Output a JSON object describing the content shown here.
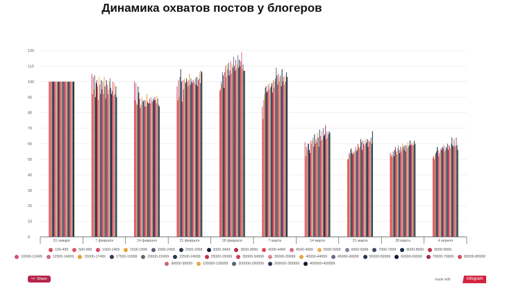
{
  "chart_data": {
    "type": "bar",
    "title": "Динамика охватов постов у блогеров",
    "xlabel": "",
    "ylabel": "",
    "ylim": [
      0,
      120
    ],
    "yticks": [
      0,
      10,
      20,
      30,
      40,
      50,
      60,
      70,
      80,
      90,
      100,
      110,
      120
    ],
    "grid": true,
    "legend_position": "bottom",
    "categories": [
      "31 января",
      "7 февраля",
      "14 февраля",
      "21 февраля",
      "28 февраля",
      "7 марта",
      "14 марта",
      "21 марта",
      "28 марта",
      "4 апреля"
    ],
    "series": [
      {
        "name": "100-499",
        "color": "#d9475c",
        "values": [
          100,
          105,
          100,
          97,
          94,
          84,
          61,
          50,
          54,
          51
        ]
      },
      {
        "name": "500-999",
        "color": "#e0525e",
        "values": [
          100,
          92,
          88,
          88,
          95,
          76,
          52,
          50,
          52,
          52
        ]
      },
      {
        "name": "1000-1499",
        "color": "#d04a64",
        "values": [
          100,
          103,
          99,
          101,
          100,
          88,
          58,
          54,
          53,
          50
        ]
      },
      {
        "name": "1500-1999",
        "color": "#e8a03c",
        "values": [
          100,
          95,
          86,
          90,
          98,
          92,
          56,
          53,
          51,
          53
        ]
      },
      {
        "name": "2000-2499",
        "color": "#5a6275",
        "values": [
          100,
          104,
          85,
          103,
          106,
          96,
          60,
          56,
          55,
          54
        ]
      },
      {
        "name": "2500-2999",
        "color": "#2a3550",
        "values": [
          100,
          90,
          97,
          108,
          104,
          97,
          60,
          57,
          52,
          55
        ]
      },
      {
        "name": "3000-3499",
        "color": "#111e33",
        "values": [
          100,
          99,
          93,
          100,
          96,
          93,
          56,
          54,
          56,
          58
        ]
      },
      {
        "name": "3500-3999",
        "color": "#b7284a",
        "values": [
          100,
          101,
          89,
          87,
          106,
          94,
          54,
          53,
          58,
          56
        ]
      },
      {
        "name": "4000-4499",
        "color": "#d74b5b",
        "values": [
          100,
          97,
          83,
          101,
          110,
          98,
          62,
          55,
          55,
          52
        ]
      },
      {
        "name": "4500-4999",
        "color": "#d36b7e",
        "values": [
          100,
          88,
          85,
          95,
          103,
          95,
          60,
          54,
          53,
          54
        ]
      },
      {
        "name": "5000-5999",
        "color": "#eab152",
        "values": [
          100,
          103,
          90,
          102,
          111,
          99,
          62,
          56,
          57,
          56
        ]
      },
      {
        "name": "6000-6999",
        "color": "#7d8698",
        "values": [
          100,
          98,
          88,
          100,
          108,
          96,
          64,
          58,
          59,
          57
        ]
      },
      {
        "name": "7000-7999",
        "color": "#3a4560",
        "values": [
          100,
          92,
          87,
          99,
          112,
          97,
          58,
          55,
          56,
          56
        ]
      },
      {
        "name": "8000-8999",
        "color": "#1b2942",
        "values": [
          100,
          101,
          88,
          102,
          104,
          99,
          66,
          56,
          54,
          58
        ]
      },
      {
        "name": "9000-9999",
        "color": "#c2304d",
        "values": [
          100,
          95,
          84,
          100,
          107,
          93,
          60,
          60,
          58,
          57
        ]
      },
      {
        "name": "10000-12499",
        "color": "#d6526a",
        "values": [
          100,
          100,
          88,
          97,
          113,
          101,
          63,
          58,
          55,
          59
        ]
      },
      {
        "name": "12500-14999",
        "color": "#cf6a7b",
        "values": [
          100,
          92,
          84,
          101,
          105,
          96,
          61,
          57,
          57,
          55
        ]
      },
      {
        "name": "15000-17499",
        "color": "#e89b3a",
        "values": [
          100,
          103,
          92,
          105,
          111,
          100,
          67,
          58,
          60,
          56
        ]
      },
      {
        "name": "17500-19999",
        "color": "#2e3955",
        "values": [
          100,
          97,
          87,
          98,
          109,
          102,
          64,
          63,
          58,
          58
        ]
      },
      {
        "name": "20000-22499",
        "color": "#5e6778",
        "values": [
          100,
          89,
          86,
          102,
          116,
          109,
          58,
          61,
          56,
          57
        ]
      },
      {
        "name": "22500-24999",
        "color": "#2b344b",
        "values": [
          100,
          101,
          86,
          100,
          110,
          104,
          69,
          56,
          59,
          60
        ]
      },
      {
        "name": "25000-29999",
        "color": "#c53050",
        "values": [
          100,
          98,
          89,
          99,
          107,
          98,
          65,
          62,
          55,
          56
        ]
      },
      {
        "name": "30000-34999",
        "color": "#cc3f5b",
        "values": [
          100,
          92,
          86,
          101,
          114,
          105,
          62,
          60,
          59,
          59
        ]
      },
      {
        "name": "35000-39999",
        "color": "#d98798",
        "values": [
          100,
          95,
          90,
          100,
          108,
          100,
          68,
          59,
          57,
          58
        ]
      },
      {
        "name": "40000-44999",
        "color": "#e7a846",
        "values": [
          100,
          100,
          88,
          99,
          111,
          103,
          63,
          63,
          61,
          57
        ]
      },
      {
        "name": "45000-49999",
        "color": "#63708a",
        "values": [
          100,
          102,
          87,
          102,
          117,
          104,
          70,
          60,
          58,
          60
        ]
      },
      {
        "name": "50000-59999",
        "color": "#253252",
        "values": [
          100,
          96,
          89,
          98,
          109,
          97,
          65,
          61,
          59,
          64
        ]
      },
      {
        "name": "60000-69999",
        "color": "#0f1b2e",
        "values": [
          100,
          92,
          88,
          103,
          114,
          108,
          66,
          63,
          62,
          59
        ]
      },
      {
        "name": "70000-79999",
        "color": "#a82848",
        "values": [
          100,
          94,
          90,
          97,
          110,
          100,
          72,
          58,
          59,
          58
        ]
      },
      {
        "name": "80000-89999",
        "color": "#d64b63",
        "values": [
          100,
          100,
          88,
          101,
          113,
          103,
          63,
          62,
          60,
          63
        ]
      },
      {
        "name": "90000-99999",
        "color": "#cc6577",
        "values": [
          100,
          91,
          86,
          102,
          119,
          98,
          68,
          61,
          59,
          59
        ]
      },
      {
        "name": "100000-199999",
        "color": "#e6a544",
        "values": [
          100,
          99,
          91,
          106,
          108,
          104,
          64,
          62,
          61,
          58
        ]
      },
      {
        "name": "200000-299999",
        "color": "#58647c",
        "values": [
          100,
          92,
          89,
          99,
          111,
          100,
          66,
          64,
          59,
          64
        ]
      },
      {
        "name": "300000-399999",
        "color": "#283655",
        "values": [
          100,
          97,
          85,
          107,
          107,
          106,
          68,
          60,
          62,
          59
        ]
      },
      {
        "name": "400000-499999",
        "color": "#0e1a2e",
        "values": [
          100,
          90,
          84,
          106,
          107,
          103,
          67,
          68,
          60,
          56
        ]
      }
    ]
  },
  "legend_title_visible": false,
  "footer": {
    "share_label": "Share",
    "share_icon": "share-icon",
    "made_with": "made with",
    "brand": "infogram"
  }
}
